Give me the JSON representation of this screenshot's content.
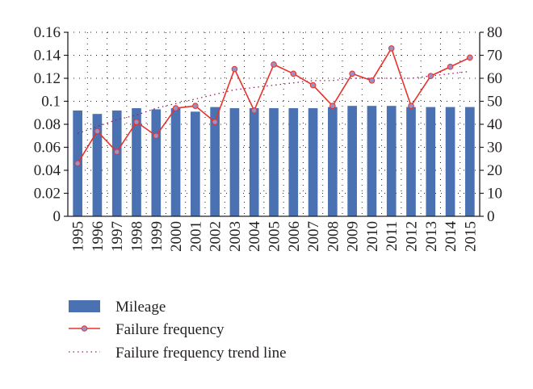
{
  "chart_data": {
    "type": "bar+line",
    "categories": [
      "1995",
      "1996",
      "1997",
      "1998",
      "1999",
      "2000",
      "2001",
      "2002",
      "2003",
      "2004",
      "2005",
      "2006",
      "2007",
      "2008",
      "2009",
      "2010",
      "2011",
      "2012",
      "2013",
      "2014",
      "2015"
    ],
    "y_left": {
      "ylim": [
        0,
        0.16
      ],
      "ticks": [
        "0",
        "0.02",
        "0.04",
        "0.06",
        "0.08",
        "0.1",
        "0.12",
        "0.14",
        "0.16"
      ]
    },
    "y_right": {
      "ylim": [
        0,
        80
      ],
      "ticks": [
        "0",
        "10",
        "20",
        "30",
        "40",
        "50",
        "60",
        "70",
        "80"
      ]
    },
    "grid": "dotted",
    "legend_position": "bottom",
    "series": [
      {
        "name": "Mileage",
        "type": "bar",
        "axis": "left",
        "color": "#4a71b2",
        "values": [
          0.092,
          0.089,
          0.092,
          0.094,
          0.093,
          0.094,
          0.091,
          0.095,
          0.094,
          0.094,
          0.094,
          0.094,
          0.094,
          0.095,
          0.096,
          0.096,
          0.096,
          0.095,
          0.095,
          0.095,
          0.095
        ]
      },
      {
        "name": "Failure frequency",
        "type": "line",
        "axis": "right",
        "color": "#e8322c",
        "marker_color": "#9b8fc6",
        "values": [
          23,
          37,
          28,
          41,
          35,
          47,
          48,
          41,
          64,
          46,
          66,
          62,
          57,
          48,
          62,
          59,
          73,
          48,
          61,
          65,
          69
        ]
      },
      {
        "name": "Failure frequency trend line",
        "type": "trend",
        "axis": "right",
        "color": "#9c1a6e",
        "values": [
          36,
          39,
          42,
          44,
          47,
          49,
          51,
          53,
          55,
          56,
          57,
          58,
          59,
          59,
          60,
          60,
          60,
          60,
          61,
          62,
          63
        ]
      }
    ]
  }
}
